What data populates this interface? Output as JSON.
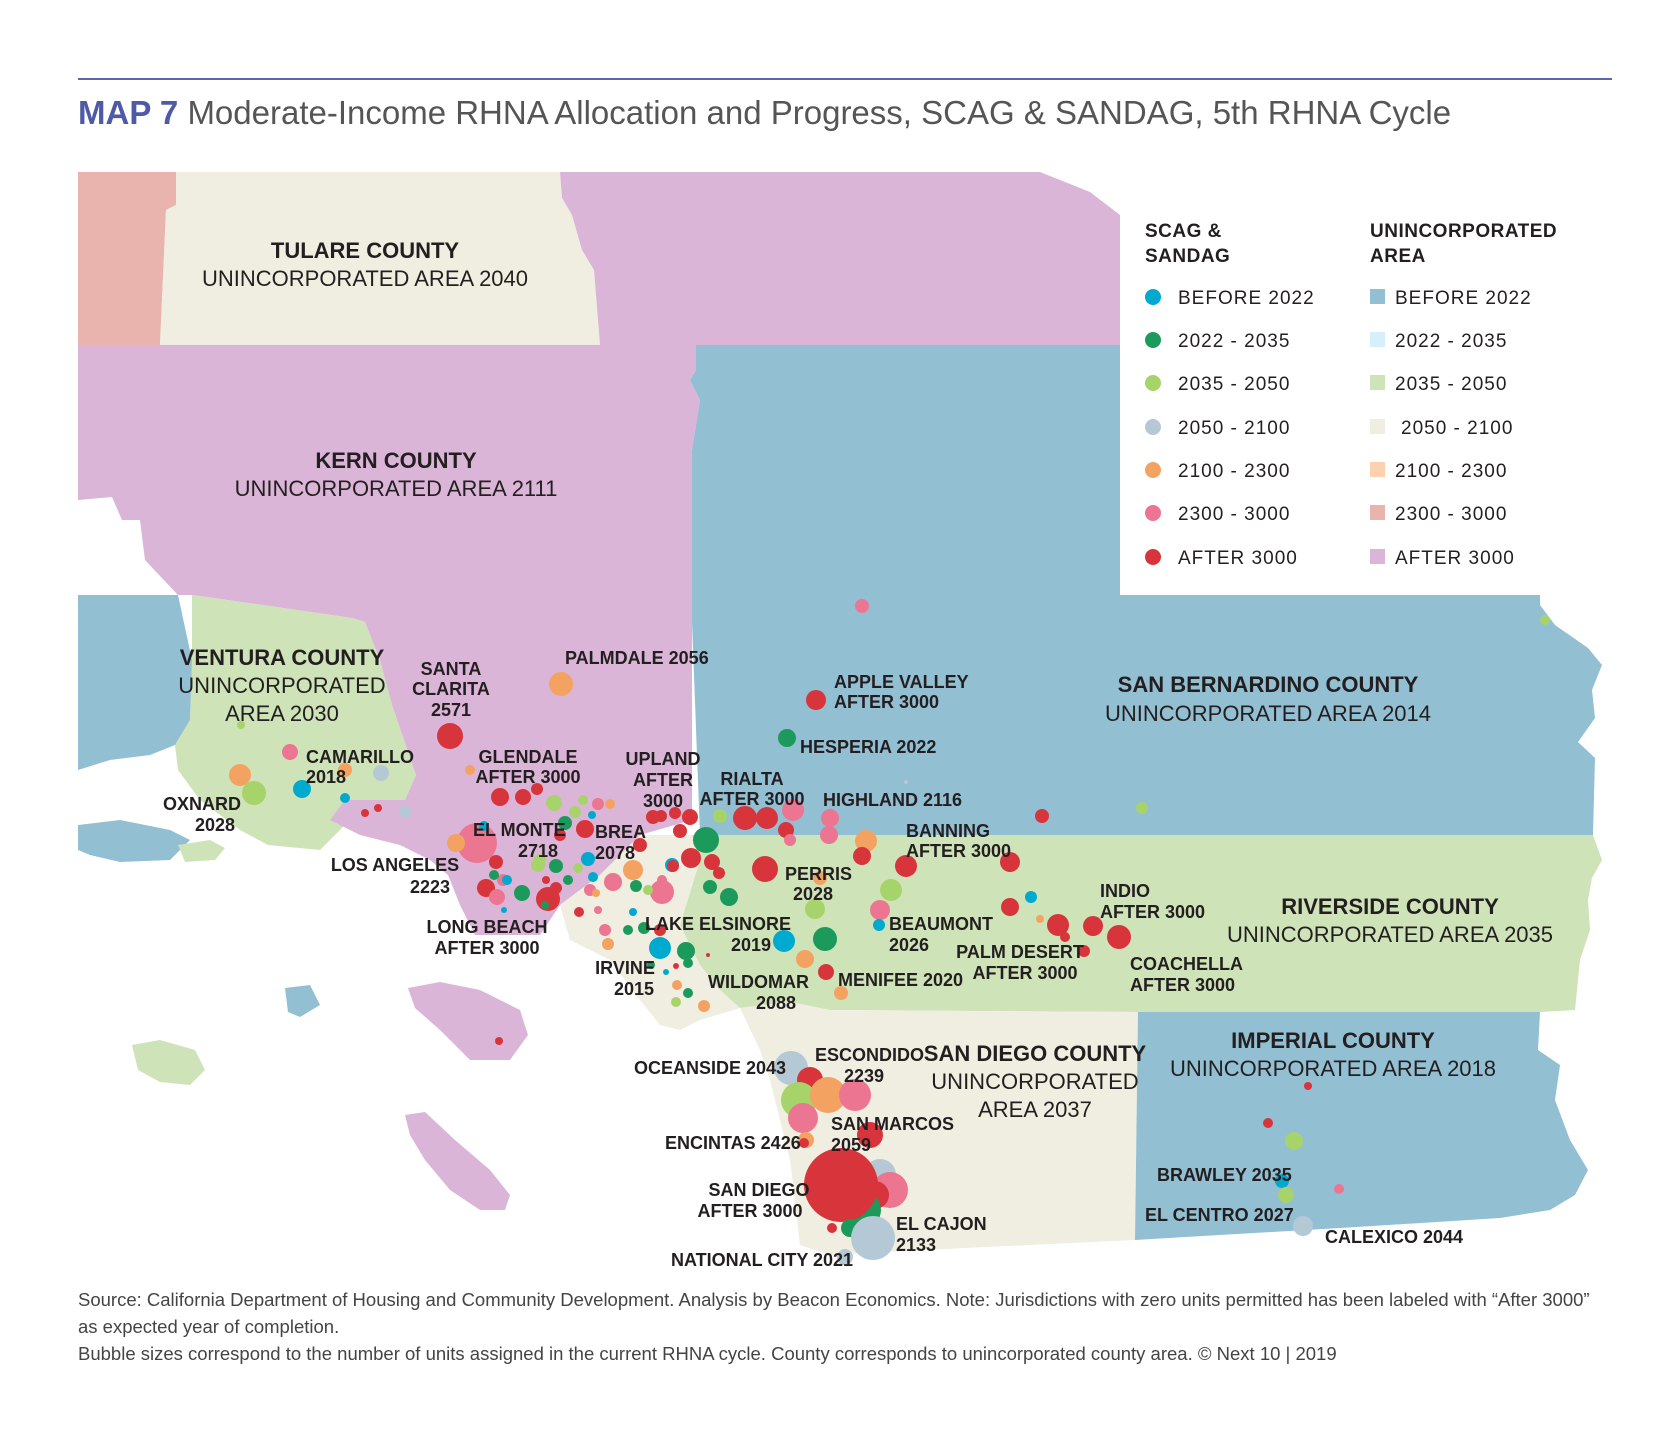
{
  "title": {
    "prefix": "MAP 7",
    "text": "Moderate-Income RHNA Allocation and Progress, SCAG & SANDAG, 5th RHNA Cycle"
  },
  "colors": {
    "before_2022": "#00a9ce",
    "y2022_2035": "#1b9a5c",
    "y2035_2050": "#a7d36b",
    "y2050_2100": "#b4c8d6",
    "y2100_2300": "#f4a261",
    "y2300_3000": "#ec7592",
    "after_3000": "#d7353b",
    "area_before_2022": "#93bfd3",
    "area_2022_2035": "#d6f0fa",
    "area_2035_2050": "#cfe3b9",
    "area_2050_2100": "#efeee0",
    "area_2100_2300": "#fdd0b0",
    "area_2300_3000": "#e8b4ad",
    "area_after_3000": "#dbb5d8"
  },
  "legend": {
    "col1_head": [
      "SCAG &",
      "SANDAG"
    ],
    "col2_head": [
      "UNINCORPORATED",
      "AREA"
    ],
    "items": [
      "BEFORE 2022",
      "2022 - 2035",
      "2035 - 2050",
      "2050 - 2100",
      "2100 - 2300",
      "2300 - 3000",
      "AFTER 3000"
    ]
  },
  "counties": {
    "tulare": [
      "TULARE COUNTY",
      "UNINCORPORATED AREA 2040"
    ],
    "kern": [
      "KERN COUNTY",
      "UNINCORPORATED AREA 2111"
    ],
    "ventura": [
      "VENTURA COUNTY",
      "UNINCORPORATED",
      "AREA 2030"
    ],
    "san_bernardino": [
      "SAN BERNARDINO COUNTY",
      "UNINCORPORATED AREA 2014"
    ],
    "riverside": [
      "RIVERSIDE COUNTY",
      "UNINCORPORATED AREA 2035"
    ],
    "san_diego": [
      "SAN DIEGO COUNTY",
      "UNINCORPORATED",
      "AREA 2037"
    ],
    "imperial": [
      "IMPERIAL COUNTY",
      "UNINCORPORATED AREA 2018"
    ]
  },
  "cities": {
    "palmdale": "PALMDALE 2056",
    "santa_clarita": [
      "SANTA",
      "CLARITA",
      "2571"
    ],
    "camarillo": [
      "CAMARILLO",
      "2018"
    ],
    "oxnard": [
      "OXNARD",
      "2028"
    ],
    "glendale": [
      "GLENDALE",
      "AFTER 3000"
    ],
    "upland": [
      "UPLAND",
      "AFTER",
      "3000"
    ],
    "rialta": [
      "RIALTA",
      "AFTER 3000"
    ],
    "apple_valley": [
      "APPLE VALLEY",
      "AFTER 3000"
    ],
    "hesperia": "HESPERIA 2022",
    "highland": "HIGHLAND 2116",
    "banning": [
      "BANNING",
      "AFTER 3000"
    ],
    "el_monte": [
      "EL MONTE",
      "2718"
    ],
    "brea": [
      "BREA",
      "2078"
    ],
    "los_angeles": [
      "LOS ANGELES",
      "2223"
    ],
    "perris": [
      "PERRIS",
      "2028"
    ],
    "long_beach": [
      "LONG BEACH",
      "AFTER 3000"
    ],
    "lake_elsinore": [
      "LAKE ELSINORE",
      "2019"
    ],
    "beaumont": [
      "BEAUMONT",
      "2026"
    ],
    "palm_desert": [
      "PALM DESERT",
      "AFTER 3000"
    ],
    "indio": [
      "INDIO",
      "AFTER 3000"
    ],
    "coachella": [
      "COACHELLA",
      "AFTER 3000"
    ],
    "irvine": [
      "IRVINE",
      "2015"
    ],
    "wildomar": [
      "WILDOMAR",
      "2088"
    ],
    "menifee": "MENIFEE 2020",
    "oceanside": "OCEANSIDE 2043",
    "escondido": [
      "ESCONDIDO",
      "2239"
    ],
    "san_marcos": [
      "SAN MARCOS",
      "2059"
    ],
    "encintas": "ENCINTAS 2426",
    "san_diego": [
      "SAN DIEGO",
      "AFTER 3000"
    ],
    "el_cajon": [
      "EL CAJON",
      "2133"
    ],
    "national_city": "NATIONAL CITY 2021",
    "brawley": "BRAWLEY 2035",
    "el_centro": "EL CENTRO 2027",
    "calexico": "CALEXICO 2044"
  },
  "source": [
    "Source: California Department of Housing and Community Development. Analysis by Beacon Economics. Note: Jurisdictions with zero units permitted has been labeled with “After 3000” as expected year of completion.",
    "Bubble sizes correspond to the number of units assigned in the current RHNA cycle. County corresponds to unincorporated county area.  © Next 10 | 2019"
  ]
}
